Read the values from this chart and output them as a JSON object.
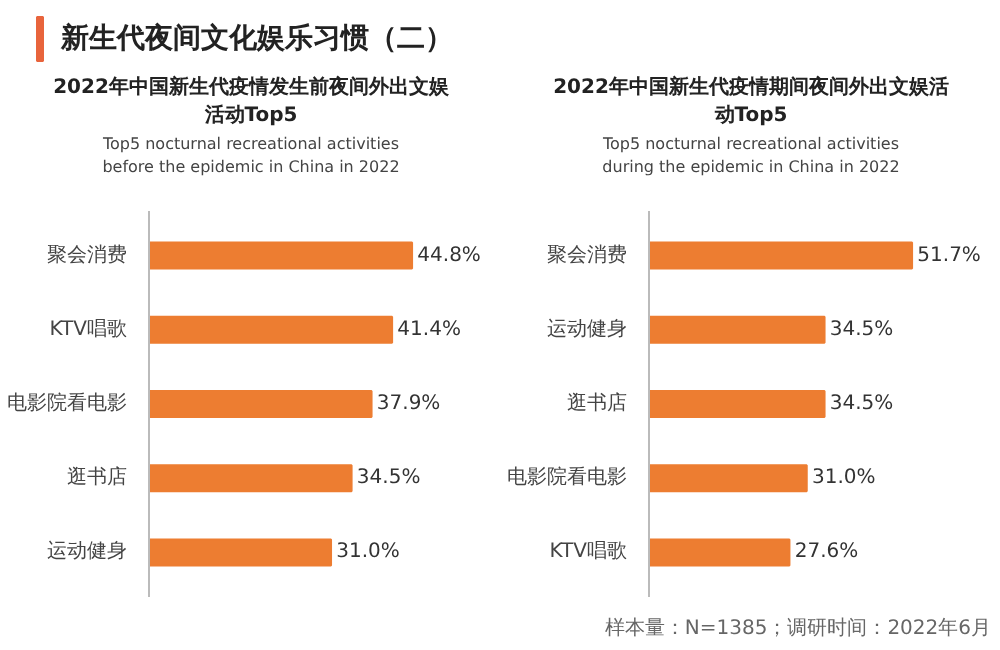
{
  "chart_data": [
    {
      "type": "other",
      "title": "新生代夜间文化娱乐习惯（二）",
      "annotations": [
        "样本量：N=1385；调研时间：2022年6月"
      ]
    },
    {
      "type": "bar",
      "orientation": "horizontal",
      "title": "2022年中国新生代疫情发生前夜间外出文娱活动Top5",
      "subtitle": "Top5 nocturnal recreational activities before the epidemic in China in 2022",
      "categories": [
        "聚会消费",
        "KTV唱歌",
        "电影院看电影",
        "逛书店",
        "运动健身"
      ],
      "values": [
        44.8,
        41.4,
        37.9,
        34.5,
        31.0
      ],
      "value_labels": [
        "44.8%",
        "41.4%",
        "37.9%",
        "34.5%",
        "31.0%"
      ],
      "color": "#ed7d31",
      "tick_labels": "y",
      "grid": false
    },
    {
      "type": "bar",
      "orientation": "horizontal",
      "title": "2022年中国新生代疫情期间夜间外出文娱活动Top5",
      "subtitle": "Top5 nocturnal recreational activities during the epidemic in China in 2022",
      "categories": [
        "聚会消费",
        "运动健身",
        "逛书店",
        "电影院看电影",
        "KTV唱歌"
      ],
      "values": [
        51.7,
        34.5,
        34.5,
        31.0,
        27.6
      ],
      "value_labels": [
        "51.7%",
        "34.5%",
        "34.5%",
        "31.0%",
        "27.6%"
      ],
      "color": "#ed7d31",
      "tick_labels": "y",
      "grid": false
    }
  ]
}
